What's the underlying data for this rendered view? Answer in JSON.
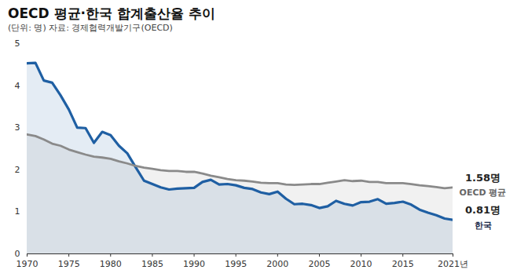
{
  "chart_data": {
    "type": "line",
    "title": "OECD 평균·한국 합계출산율 추이",
    "subtitle": "(단위: 명) 자료: 경제협력개발기구(OECD)",
    "x": [
      1970,
      1971,
      1972,
      1973,
      1974,
      1975,
      1976,
      1977,
      1978,
      1979,
      1980,
      1981,
      1982,
      1983,
      1984,
      1985,
      1986,
      1987,
      1988,
      1989,
      1990,
      1991,
      1992,
      1993,
      1994,
      1995,
      1996,
      1997,
      1998,
      1999,
      2000,
      2001,
      2002,
      2003,
      2004,
      2005,
      2006,
      2007,
      2008,
      2009,
      2010,
      2011,
      2012,
      2013,
      2014,
      2015,
      2016,
      2017,
      2018,
      2019,
      2020,
      2021
    ],
    "series": [
      {
        "name": "한국",
        "color": "#1f5fa3",
        "values": [
          4.53,
          4.54,
          4.12,
          4.07,
          3.77,
          3.43,
          3.0,
          2.99,
          2.64,
          2.9,
          2.82,
          2.57,
          2.39,
          2.06,
          1.74,
          1.66,
          1.58,
          1.53,
          1.55,
          1.56,
          1.57,
          1.71,
          1.76,
          1.65,
          1.66,
          1.63,
          1.57,
          1.54,
          1.46,
          1.42,
          1.48,
          1.31,
          1.18,
          1.19,
          1.16,
          1.09,
          1.13,
          1.26,
          1.19,
          1.15,
          1.23,
          1.24,
          1.3,
          1.19,
          1.21,
          1.24,
          1.17,
          1.05,
          0.98,
          0.92,
          0.84,
          0.81
        ]
      },
      {
        "name": "OECD 평균",
        "color": "#8a8a8a",
        "values": [
          2.84,
          2.8,
          2.72,
          2.62,
          2.57,
          2.48,
          2.42,
          2.36,
          2.31,
          2.29,
          2.26,
          2.2,
          2.15,
          2.09,
          2.05,
          2.02,
          1.99,
          1.97,
          1.97,
          1.95,
          1.95,
          1.91,
          1.86,
          1.82,
          1.78,
          1.75,
          1.74,
          1.72,
          1.69,
          1.68,
          1.68,
          1.65,
          1.64,
          1.65,
          1.66,
          1.66,
          1.69,
          1.72,
          1.75,
          1.73,
          1.74,
          1.71,
          1.71,
          1.68,
          1.68,
          1.68,
          1.66,
          1.63,
          1.61,
          1.59,
          1.56,
          1.58
        ]
      }
    ],
    "xlim": [
      1970,
      2021
    ],
    "xticks": [
      1970,
      1975,
      1980,
      1985,
      1990,
      1995,
      2000,
      2005,
      2010,
      2015,
      {
        "value": 2021,
        "label": "2021년"
      }
    ],
    "ylim": [
      0,
      5
    ],
    "yticks": [
      0,
      1,
      2,
      3,
      4,
      5
    ],
    "grid": false,
    "annotations": [
      {
        "x": 2021,
        "y": 1.58,
        "text": "1.58명"
      },
      {
        "x": 2021,
        "y": 0.81,
        "text": "0.81명"
      }
    ]
  }
}
